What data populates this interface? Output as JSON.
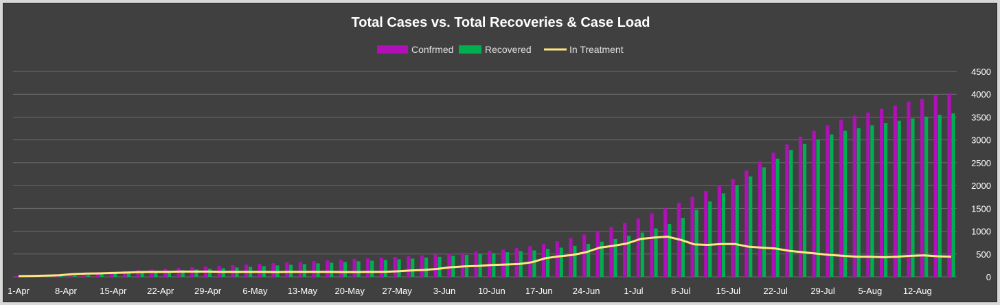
{
  "chart_data": {
    "type": "bar",
    "title": "Total Cases vs. Total Recoveries & Case Load",
    "xlabel": "",
    "ylabel": "",
    "ylim": [
      0,
      4500
    ],
    "yticks": [
      0,
      500,
      1000,
      1500,
      2000,
      2500,
      3000,
      3500,
      4000,
      4500
    ],
    "grid": true,
    "legend_position": "top",
    "x_tick_labels": [
      "1-Apr",
      "8-Apr",
      "15-Apr",
      "22-Apr",
      "29-Apr",
      "6-May",
      "13-May",
      "20-May",
      "27-May",
      "3-Jun",
      "10-Jun",
      "17-Jun",
      "24-Jun",
      "1-Jul",
      "8-Jul",
      "15-Jul",
      "22-Jul",
      "29-Jul",
      "5-Aug",
      "12-Aug"
    ],
    "x_dates": [
      "1-Apr",
      "3-Apr",
      "5-Apr",
      "7-Apr",
      "9-Apr",
      "11-Apr",
      "13-Apr",
      "15-Apr",
      "17-Apr",
      "19-Apr",
      "21-Apr",
      "23-Apr",
      "25-Apr",
      "27-Apr",
      "29-Apr",
      "1-May",
      "3-May",
      "5-May",
      "7-May",
      "9-May",
      "11-May",
      "13-May",
      "15-May",
      "17-May",
      "19-May",
      "21-May",
      "23-May",
      "25-May",
      "27-May",
      "29-May",
      "31-May",
      "2-Jun",
      "4-Jun",
      "6-Jun",
      "8-Jun",
      "10-Jun",
      "12-Jun",
      "14-Jun",
      "16-Jun",
      "18-Jun",
      "20-Jun",
      "22-Jun",
      "24-Jun",
      "26-Jun",
      "28-Jun",
      "30-Jun",
      "2-Jul",
      "4-Jul",
      "6-Jul",
      "8-Jul",
      "10-Jul",
      "12-Jul",
      "14-Jul",
      "16-Jul",
      "18-Jul",
      "20-Jul",
      "22-Jul",
      "24-Jul",
      "26-Jul",
      "28-Jul",
      "30-Jul",
      "1-Aug",
      "3-Aug",
      "5-Aug",
      "7-Aug",
      "9-Aug",
      "11-Aug",
      "13-Aug",
      "15-Aug",
      "17-Aug"
    ],
    "series": [
      {
        "name": "Confrmed",
        "type": "bar",
        "color": "#b010b8",
        "values": [
          15,
          22,
          35,
          55,
          70,
          85,
          100,
          115,
          130,
          145,
          160,
          175,
          195,
          210,
          225,
          240,
          255,
          270,
          285,
          300,
          315,
          330,
          345,
          360,
          375,
          390,
          405,
          420,
          435,
          455,
          470,
          490,
          510,
          530,
          550,
          570,
          600,
          630,
          670,
          720,
          780,
          850,
          930,
          1010,
          1090,
          1180,
          1280,
          1390,
          1500,
          1620,
          1750,
          1880,
          2000,
          2140,
          2330,
          2530,
          2720,
          2900,
          3070,
          3200,
          3320,
          3440,
          3530,
          3600,
          3680,
          3750,
          3840,
          3900,
          3980,
          4020
        ]
      },
      {
        "name": "Recovered",
        "type": "bar",
        "color": "#00b050",
        "values": [
          2,
          5,
          10,
          18,
          28,
          40,
          55,
          70,
          85,
          100,
          115,
          130,
          145,
          160,
          175,
          190,
          205,
          220,
          235,
          250,
          265,
          280,
          295,
          310,
          325,
          340,
          355,
          370,
          385,
          400,
          420,
          440,
          460,
          480,
          500,
          520,
          540,
          560,
          580,
          610,
          640,
          680,
          720,
          770,
          830,
          900,
          970,
          1060,
          1160,
          1290,
          1470,
          1650,
          1830,
          2010,
          2200,
          2400,
          2590,
          2780,
          2910,
          3010,
          3120,
          3200,
          3260,
          3320,
          3370,
          3420,
          3470,
          3510,
          3550,
          3580
        ]
      },
      {
        "name": "In Treatment",
        "type": "line",
        "color": "#ffe680",
        "values": [
          15,
          18,
          25,
          35,
          60,
          70,
          75,
          85,
          95,
          105,
          110,
          110,
          115,
          115,
          115,
          110,
          110,
          110,
          110,
          105,
          110,
          110,
          110,
          110,
          105,
          105,
          110,
          110,
          120,
          140,
          150,
          175,
          210,
          230,
          240,
          260,
          270,
          280,
          320,
          410,
          450,
          480,
          540,
          640,
          680,
          730,
          830,
          860,
          880,
          810,
          710,
          700,
          720,
          720,
          660,
          640,
          620,
          570,
          540,
          510,
          480,
          460,
          440,
          440,
          430,
          440,
          460,
          470,
          450,
          440
        ]
      }
    ]
  }
}
